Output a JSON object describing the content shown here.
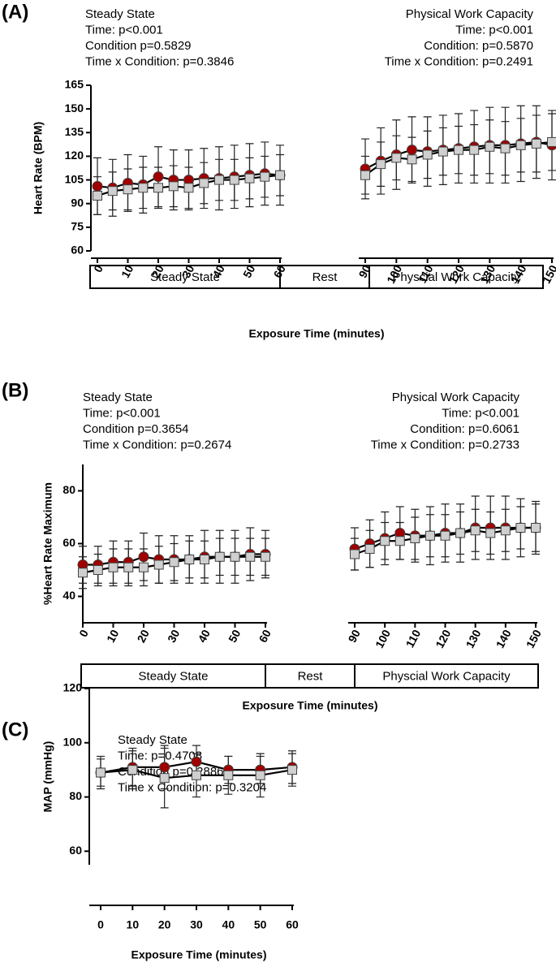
{
  "chart_data": [
    {
      "type": "line",
      "panel_label": "(A)",
      "stats_left": [
        "Steady State",
        "Time: p<0.001",
        "Condition p=0.5829",
        "Time x Condition: p=0.3846"
      ],
      "stats_right": [
        "Physical Work Capacity",
        "Time: p<0.001",
        "Condition: p=0.5870",
        "Time x Condition: p=0.2491"
      ],
      "y_label": "Heart Rate (BPM)",
      "x_label": "Exposure Time (minutes)",
      "phases": [
        "Steady State",
        "Rest",
        "Physcial Work Capacity"
      ],
      "x": [
        0,
        5,
        10,
        15,
        20,
        25,
        30,
        35,
        40,
        45,
        50,
        55,
        60,
        90,
        95,
        100,
        105,
        110,
        115,
        120,
        125,
        130,
        135,
        140,
        145,
        150
      ],
      "xlim_segments": [
        [
          0,
          60
        ],
        [
          90,
          150
        ]
      ],
      "xticks": [
        0,
        10,
        20,
        30,
        40,
        50,
        60,
        90,
        100,
        110,
        120,
        130,
        140,
        150
      ],
      "ylim": [
        60,
        165
      ],
      "yticks": [
        60,
        75,
        90,
        105,
        120,
        135,
        150,
        165
      ],
      "series": [
        {
          "color": "#a00000",
          "marker": "circle",
          "values": [
            101,
            100,
            103,
            102,
            107,
            105,
            105,
            106,
            106,
            107,
            108,
            109,
            108,
            112,
            117,
            121,
            124,
            123,
            124,
            125,
            126,
            127,
            127,
            128,
            129,
            127
          ],
          "errors": [
            18,
            18,
            18,
            18,
            19,
            19,
            19,
            19,
            20,
            20,
            20,
            20,
            19,
            19,
            21,
            22,
            21,
            22,
            22,
            22,
            23,
            24,
            24,
            24,
            23,
            22
          ]
        },
        {
          "color": "#cfcfcf",
          "marker": "square",
          "values": [
            95,
            98,
            99,
            100,
            100,
            101,
            100,
            103,
            105,
            105,
            106,
            107,
            108,
            108,
            115,
            119,
            118,
            121,
            123,
            124,
            124,
            126,
            125,
            127,
            128,
            129
          ],
          "errors": [
            12,
            12,
            13,
            13,
            13,
            13,
            13,
            13,
            13,
            13,
            13,
            13,
            13,
            12,
            14,
            14,
            14,
            15,
            15,
            15,
            16,
            17,
            17,
            17,
            18,
            18
          ]
        }
      ]
    },
    {
      "type": "line",
      "panel_label": "(B)",
      "stats_left": [
        "Steady State",
        "Time: p<0.001",
        "Condition p=0.3654",
        "Time x Condition: p=0.2674"
      ],
      "stats_right": [
        "Physical Work Capacity",
        "Time: p<0.001",
        "Condition: p=0.6061",
        "Time x Condition: p=0.2733"
      ],
      "y_label": "%Heart Rate Maximum",
      "x_label": "Exposure Time (minutes)",
      "phases": [
        "Steady State",
        "Rest",
        "Physcial Work Capacity"
      ],
      "x": [
        0,
        5,
        10,
        15,
        20,
        25,
        30,
        35,
        40,
        45,
        50,
        55,
        60,
        90,
        95,
        100,
        105,
        110,
        115,
        120,
        125,
        130,
        135,
        140,
        145,
        150
      ],
      "xlim_segments": [
        [
          0,
          60
        ],
        [
          90,
          150
        ]
      ],
      "xticks": [
        0,
        10,
        20,
        30,
        40,
        50,
        60,
        90,
        100,
        110,
        120,
        130,
        140,
        150
      ],
      "ylim": [
        30,
        90
      ],
      "yticks": [
        40,
        60,
        80
      ],
      "series": [
        {
          "color": "#a00000",
          "marker": "circle",
          "values": [
            52,
            52,
            53,
            53,
            55,
            54,
            54,
            54,
            55,
            55,
            55,
            56,
            56,
            58,
            60,
            62,
            64,
            63,
            63,
            64,
            64,
            66,
            66,
            66,
            66,
            66
          ],
          "errors": [
            7,
            7,
            8,
            8,
            9,
            9,
            9,
            9,
            10,
            10,
            10,
            10,
            9,
            8,
            9,
            10,
            10,
            10,
            11,
            11,
            11,
            12,
            12,
            12,
            11,
            10
          ]
        },
        {
          "color": "#cfcfcf",
          "marker": "square",
          "values": [
            49,
            50,
            51,
            51,
            51,
            52,
            53,
            54,
            54,
            55,
            55,
            55,
            55,
            56,
            58,
            61,
            61,
            62,
            63,
            63,
            64,
            65,
            64,
            65,
            66,
            66
          ],
          "errors": [
            6,
            6,
            7,
            7,
            7,
            7,
            7,
            7,
            7,
            7,
            7,
            7,
            7,
            6,
            7,
            7,
            7,
            8,
            8,
            8,
            8,
            8,
            8,
            8,
            8,
            9
          ]
        }
      ]
    },
    {
      "type": "line",
      "panel_label": "(C)",
      "stats_left": [
        "Steady State",
        "Time: p=0.4708",
        "Condition p=0.2886",
        "Time x Condition: p=0.3204"
      ],
      "y_label": "MAP (mmHg)",
      "x_label": "Exposure Time (minutes)",
      "x": [
        0,
        10,
        20,
        30,
        40,
        50,
        60
      ],
      "xlim_segments": [
        [
          0,
          60
        ]
      ],
      "xticks": [
        0,
        10,
        20,
        30,
        40,
        50,
        60
      ],
      "ylim": [
        55,
        120
      ],
      "yticks": [
        60,
        80,
        100,
        120
      ],
      "series": [
        {
          "color": "#a00000",
          "marker": "circle",
          "values": [
            89,
            91,
            91,
            93,
            90,
            90,
            91
          ],
          "errors": [
            5,
            7,
            8,
            6,
            5,
            5,
            6
          ]
        },
        {
          "color": "#cfcfcf",
          "marker": "square",
          "values": [
            89,
            90,
            87,
            88,
            88,
            88,
            90
          ],
          "errors": [
            6,
            7,
            11,
            8,
            7,
            8,
            6
          ]
        }
      ]
    }
  ]
}
